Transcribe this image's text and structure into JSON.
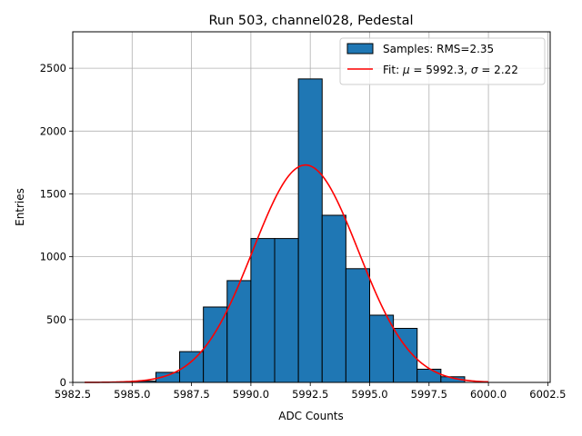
{
  "chart_data": {
    "type": "bar",
    "title": "Run 503, channel028, Pedestal",
    "xlabel": "ADC Counts",
    "ylabel": "Entries",
    "xlim": [
      5982.5,
      6002.6
    ],
    "ylim": [
      0,
      2790
    ],
    "grid": true,
    "legend_position": "top-right",
    "x_ticks": [
      5982.5,
      5985.0,
      5987.5,
      5990.0,
      5992.5,
      5995.0,
      5997.5,
      6000.0,
      6002.5
    ],
    "x_tick_labels": [
      "5982.5",
      "5985.0",
      "5987.5",
      "5990.0",
      "5992.5",
      "5995.0",
      "5997.5",
      "6000.0",
      "6002.5"
    ],
    "y_ticks": [
      0,
      500,
      1000,
      1500,
      2000,
      2500
    ],
    "y_tick_labels": [
      "0",
      "500",
      "1000",
      "1500",
      "2000",
      "2500"
    ],
    "histogram": {
      "name": "Samples: RMS=2.35",
      "color": "#1f77b4",
      "edge_color": "#000000",
      "bin_edges": [
        5985,
        5986,
        5987,
        5988,
        5989,
        5990,
        5991,
        5992,
        5993,
        5994,
        5995,
        5996,
        5997,
        5998,
        5999
      ],
      "counts": [
        10,
        80,
        245,
        600,
        810,
        1145,
        1145,
        2415,
        1330,
        905,
        535,
        430,
        105,
        45
      ]
    },
    "fit": {
      "name_prefix": "Fit: ",
      "mu_symbol": "μ",
      "mu_text": " = 5992.3, ",
      "sigma_symbol": "σ",
      "sigma_text": " = 2.22",
      "color": "#ff0000",
      "mu": 5992.3,
      "sigma": 2.22,
      "amplitude": 1730,
      "x_range": [
        5983,
        6000
      ]
    }
  }
}
